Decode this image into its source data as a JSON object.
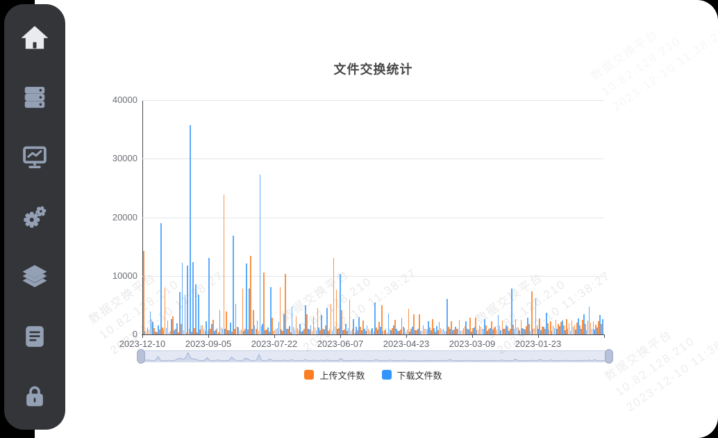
{
  "page": {
    "background": "#000000",
    "card_background": "#ffffff",
    "sidebar_background": "#343539",
    "sidebar_icon_color": "#94a1b5",
    "sidebar_active_icon_color": "#e9ebef"
  },
  "sidebar": {
    "items": [
      {
        "id": "home",
        "icon": "home-icon",
        "active": true
      },
      {
        "id": "servers",
        "icon": "server-rack-icon",
        "active": false
      },
      {
        "id": "dashboard",
        "icon": "chart-board-icon",
        "active": false
      },
      {
        "id": "settings",
        "icon": "gears-icon",
        "active": false
      },
      {
        "id": "layers",
        "icon": "layers-icon",
        "active": false
      },
      {
        "id": "documents",
        "icon": "document-icon",
        "active": false
      },
      {
        "id": "security",
        "icon": "lock-icon",
        "active": false
      }
    ]
  },
  "watermark": {
    "line1": "数据交换平台",
    "line2": "10.82.128.210",
    "line3": "2023-12-10 11:38:27"
  },
  "chart_data": {
    "type": "bar",
    "title": "文件交换统计",
    "xlabel": "",
    "ylabel": "",
    "ylim": [
      0,
      40000
    ],
    "y_ticks": [
      0,
      10000,
      20000,
      30000,
      40000
    ],
    "x_tick_labels": [
      "2023-12-10",
      "2023-09-05",
      "2023-07-22",
      "2023-06-07",
      "2023-04-23",
      "2023-03-09",
      "2023-01-23"
    ],
    "grid": true,
    "legend_position": "bottom",
    "datazoom_slider": true,
    "series": [
      {
        "name": "上传文件数",
        "color": "#fb7e23",
        "values": [
          14300,
          400,
          700,
          2600,
          1100,
          300,
          800,
          1200,
          7800,
          2400,
          600,
          3100,
          900,
          400,
          1800,
          700,
          300,
          900,
          500,
          1100,
          400,
          800,
          1500,
          600,
          700,
          1000,
          2500,
          800,
          400,
          1200,
          23800,
          3900,
          700,
          500,
          900,
          1300,
          600,
          7800,
          1000,
          800,
          13400,
          4200,
          900,
          600,
          1400,
          10600,
          800,
          500,
          2900,
          700,
          1100,
          8100,
          600,
          10300,
          900,
          400,
          1300,
          3100,
          700,
          500,
          1000,
          3500,
          800,
          600,
          1200,
          4500,
          700,
          900,
          1500,
          600,
          5200,
          13100,
          7600,
          1100,
          4100,
          800,
          600,
          5900,
          900,
          400,
          700,
          1300,
          2400,
          600,
          1000,
          800,
          500,
          1200,
          2100,
          5000,
          700,
          400,
          900,
          1100,
          2500,
          600,
          800,
          1300,
          500,
          4400,
          900,
          3500,
          700,
          3400,
          600,
          1000,
          800,
          1200,
          2600,
          500,
          700,
          1100,
          900,
          600,
          1300,
          2300,
          800,
          1000,
          2500,
          700,
          1400,
          900,
          2800,
          1100,
          2900,
          800,
          1300,
          1000,
          1600,
          900,
          2200,
          1200,
          800,
          1500,
          2400,
          1000,
          1300,
          900,
          1700,
          2600,
          1200,
          2500,
          1000,
          1400,
          1800,
          7400,
          1100,
          1600,
          2700,
          1300,
          1000,
          1900,
          2300,
          1500,
          2500,
          1800,
          2100,
          1600,
          2600,
          1900,
          2400,
          1700,
          2000,
          1500,
          2500,
          1800,
          2400,
          2000,
          2200,
          1700,
          2300,
          1800
        ]
      },
      {
        "name": "下载文件数",
        "color": "#3295fb",
        "values": [
          600,
          1200,
          3900,
          2100,
          500,
          1500,
          19000,
          800,
          1100,
          400,
          2600,
          700,
          1900,
          7200,
          12200,
          6800,
          11800,
          35700,
          12300,
          8500,
          6800,
          1500,
          900,
          2200,
          13000,
          1800,
          600,
          1100,
          4100,
          900,
          1000,
          700,
          2000,
          16900,
          5200,
          1200,
          800,
          600,
          12100,
          7800,
          900,
          1500,
          2400,
          27300,
          1800,
          700,
          1200,
          8100,
          600,
          1000,
          2100,
          800,
          3400,
          900,
          1400,
          4700,
          700,
          1100,
          1800,
          600,
          5000,
          900,
          1500,
          3000,
          700,
          1200,
          3300,
          800,
          4500,
          1000,
          600,
          1400,
          900,
          10300,
          700,
          1800,
          1100,
          600,
          2600,
          1300,
          3000,
          700,
          900,
          1500,
          600,
          1100,
          5500,
          800,
          1300,
          600,
          1000,
          3600,
          700,
          1500,
          900,
          600,
          2900,
          1100,
          800,
          500,
          1300,
          700,
          1000,
          600,
          1500,
          900,
          2200,
          700,
          1100,
          1400,
          2100,
          800,
          600,
          6000,
          1000,
          700,
          1300,
          900,
          600,
          1100,
          2300,
          800,
          500,
          1200,
          700,
          1500,
          900,
          2600,
          600,
          1100,
          800,
          1300,
          3300,
          700,
          1000,
          1500,
          600,
          7800,
          900,
          1200,
          700,
          1100,
          800,
          2800,
          600,
          1000,
          6200,
          900,
          700,
          1300,
          3700,
          800,
          600,
          1100,
          900,
          1400,
          2400,
          700,
          1000,
          600,
          1300,
          800,
          2700,
          900,
          3500,
          700,
          4800,
          1000,
          800,
          1200,
          3300,
          2600
        ]
      }
    ]
  }
}
